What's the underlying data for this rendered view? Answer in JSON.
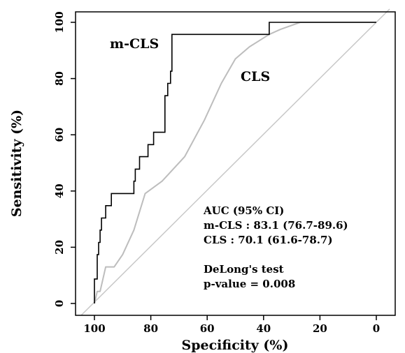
{
  "chart_data": {
    "type": "line",
    "title": "",
    "xlabel": "Specificity (%)",
    "ylabel": "Sensitivity (%)",
    "xlim": [
      110,
      -5
    ],
    "ylim": [
      -4,
      104
    ],
    "x_ticks": [
      100,
      80,
      60,
      40,
      20,
      0
    ],
    "y_ticks": [
      0,
      20,
      40,
      60,
      80,
      100
    ],
    "legend": "none",
    "grid": false,
    "reference_line": {
      "from": [
        100,
        0
      ],
      "to": [
        0,
        100
      ],
      "color": "#c8c8c8"
    },
    "series": [
      {
        "name": "m-CLS",
        "color": "#000000",
        "points": [
          [
            100,
            0
          ],
          [
            100,
            8.7
          ],
          [
            99,
            8.7
          ],
          [
            99,
            17.4
          ],
          [
            98.5,
            17.4
          ],
          [
            98.5,
            21.7
          ],
          [
            98,
            21.7
          ],
          [
            98,
            26.1
          ],
          [
            97.5,
            26.1
          ],
          [
            97.5,
            30.4
          ],
          [
            96,
            30.4
          ],
          [
            96,
            34.8
          ],
          [
            94,
            34.8
          ],
          [
            94,
            39.1
          ],
          [
            86,
            39.1
          ],
          [
            86,
            43.5
          ],
          [
            85.5,
            43.5
          ],
          [
            85.5,
            47.8
          ],
          [
            84,
            47.8
          ],
          [
            84,
            52.2
          ],
          [
            81,
            52.2
          ],
          [
            81,
            56.5
          ],
          [
            79,
            56.5
          ],
          [
            79,
            60.9
          ],
          [
            75,
            60.9
          ],
          [
            75,
            73.9
          ],
          [
            74,
            73.9
          ],
          [
            74,
            78.3
          ],
          [
            73,
            78.3
          ],
          [
            73,
            82.6
          ],
          [
            72.5,
            82.6
          ],
          [
            72.5,
            95.7
          ],
          [
            38,
            95.7
          ],
          [
            38,
            100
          ],
          [
            0,
            100
          ]
        ]
      },
      {
        "name": "CLS",
        "color": "#bdbdbd",
        "points": [
          [
            100,
            0
          ],
          [
            99,
            4.3
          ],
          [
            98,
            4.3
          ],
          [
            96,
            13
          ],
          [
            93,
            13
          ],
          [
            90,
            17.4
          ],
          [
            86,
            26.1
          ],
          [
            82,
            39.1
          ],
          [
            76,
            43.5
          ],
          [
            68,
            52.2
          ],
          [
            61,
            65.2
          ],
          [
            55,
            78.3
          ],
          [
            50,
            87
          ],
          [
            45,
            91.3
          ],
          [
            38,
            95.7
          ],
          [
            34,
            97.5
          ],
          [
            27,
            100
          ],
          [
            0,
            100
          ]
        ]
      }
    ],
    "annotations": [
      "AUC (95% CI)",
      "m-CLS : 83.1 (76.7-89.6)",
      "CLS : 70.1 (61.6-78.7)",
      "DeLong's test",
      "p-value = 0.008"
    ]
  }
}
